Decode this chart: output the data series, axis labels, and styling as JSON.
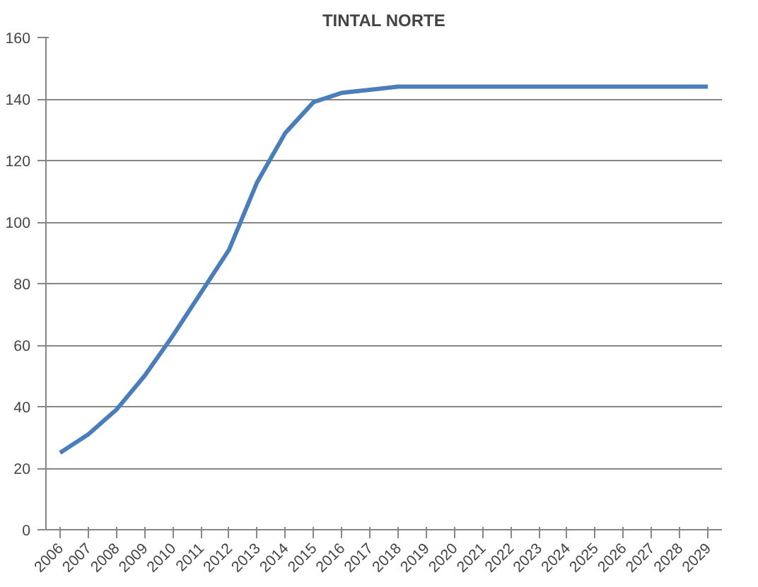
{
  "chart_data": {
    "type": "line",
    "title": "TINTAL NORTE",
    "categories": [
      "2006",
      "2007",
      "2008",
      "2009",
      "2010",
      "2011",
      "2012",
      "2013",
      "2014",
      "2015",
      "2016",
      "2017",
      "2018",
      "2019",
      "2020",
      "2021",
      "2022",
      "2023",
      "2024",
      "2025",
      "2026",
      "2027",
      "2028",
      "2029"
    ],
    "series": [
      {
        "color": "#4a7ebb",
        "values": [
          25,
          31,
          39,
          50,
          63,
          77,
          91,
          113,
          129,
          139,
          142,
          143,
          144,
          144,
          144,
          144,
          144,
          144,
          144,
          144,
          144,
          144,
          144,
          144
        ]
      }
    ],
    "ylim": [
      0,
      160
    ],
    "yticks": [
      0,
      20,
      40,
      60,
      80,
      100,
      120,
      140,
      160
    ],
    "grid": "y",
    "marker": "none",
    "line_style": "solid"
  }
}
